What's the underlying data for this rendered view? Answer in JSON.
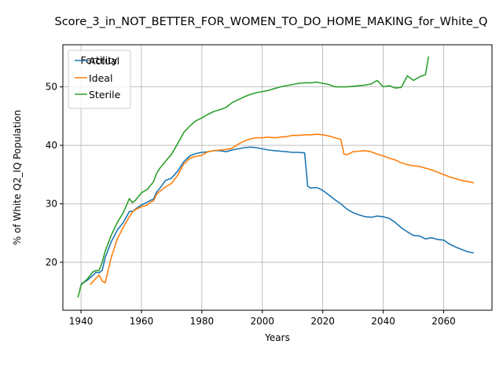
{
  "chart_data": {
    "type": "line",
    "title": "Score_3_in_NOT_BETTER_FOR_WOMEN_TO_DO_HOME_MAKING_for_White_Q",
    "xlabel": "Years",
    "ylabel": "% of White Q2_IQ Population",
    "xlim": [
      1934,
      2076
    ],
    "ylim": [
      11.8,
      57.2
    ],
    "xticks": [
      1940,
      1960,
      1980,
      2000,
      2020,
      2040,
      2060
    ],
    "yticks": [
      20,
      30,
      40,
      50
    ],
    "xtick_labels": [
      "1940",
      "1960",
      "1980",
      "2000",
      "2020",
      "2040",
      "2060"
    ],
    "ytick_labels": [
      "20",
      "30",
      "40",
      "50"
    ],
    "grid": true,
    "legend": {
      "title": "Fertility",
      "placement": "upper-left"
    },
    "series": [
      {
        "name": "Actual",
        "color": "#1f77b4",
        "x": [
          1940,
          1942,
          1944,
          1945,
          1946,
          1947,
          1948,
          1950,
          1952,
          1954,
          1956,
          1957,
          1958,
          1960,
          1962,
          1963,
          1964,
          1965,
          1966,
          1968,
          1970,
          1972,
          1974,
          1976,
          1978,
          1980,
          1982,
          1984,
          1986,
          1988,
          1990,
          1992,
          1994,
          1996,
          1998,
          2000,
          2002,
          2004,
          2006,
          2008,
          2010,
          2012,
          2014,
          2015,
          2016,
          2018,
          2020,
          2022,
          2024,
          2026,
          2028,
          2030,
          2032,
          2034,
          2036,
          2038,
          2040,
          2042,
          2044,
          2046,
          2048,
          2050,
          2052,
          2054,
          2056,
          2058,
          2060,
          2062,
          2064,
          2066,
          2068,
          2070
        ],
        "values": [
          16.3,
          16.9,
          17.8,
          18.3,
          18.2,
          18.6,
          20.8,
          23.5,
          25.5,
          26.8,
          28.7,
          28.7,
          29.1,
          29.8,
          30.3,
          30.6,
          30.8,
          32.0,
          32.6,
          34.0,
          34.4,
          35.6,
          37.2,
          38.2,
          38.6,
          38.8,
          38.9,
          39.1,
          39.1,
          38.9,
          39.2,
          39.4,
          39.6,
          39.7,
          39.6,
          39.4,
          39.2,
          39.1,
          39.0,
          38.9,
          38.8,
          38.8,
          38.7,
          33.0,
          32.7,
          32.8,
          32.3,
          31.5,
          30.7,
          30.0,
          29.1,
          28.5,
          28.1,
          27.8,
          27.7,
          27.9,
          27.8,
          27.5,
          26.8,
          25.9,
          25.2,
          24.6,
          24.5,
          24.0,
          24.2,
          23.9,
          23.8,
          23.1,
          22.6,
          22.2,
          21.8,
          21.6
        ]
      },
      {
        "name": "Ideal",
        "color": "#ff7f0e",
        "x": [
          1943,
          1944,
          1945,
          1946,
          1947,
          1948,
          1950,
          1952,
          1954,
          1956,
          1957,
          1958,
          1960,
          1962,
          1963,
          1964,
          1965,
          1966,
          1968,
          1970,
          1972,
          1974,
          1976,
          1978,
          1980,
          1982,
          1984,
          1986,
          1988,
          1990,
          1992,
          1994,
          1996,
          1998,
          2000,
          2002,
          2004,
          2006,
          2008,
          2010,
          2012,
          2014,
          2016,
          2018,
          2020,
          2022,
          2024,
          2026,
          2027,
          2028,
          2030,
          2032,
          2034,
          2036,
          2038,
          2040,
          2042,
          2044,
          2046,
          2048,
          2050,
          2052,
          2054,
          2056,
          2058,
          2060,
          2062,
          2064,
          2066,
          2068,
          2070
        ],
        "values": [
          16.2,
          16.7,
          17.3,
          17.8,
          16.8,
          16.5,
          20.8,
          24.0,
          26.0,
          27.8,
          28.6,
          29.0,
          29.5,
          29.8,
          30.3,
          30.5,
          31.6,
          32.1,
          32.9,
          33.5,
          34.9,
          36.8,
          37.8,
          38.1,
          38.3,
          38.9,
          39.1,
          39.2,
          39.3,
          39.5,
          40.2,
          40.7,
          41.1,
          41.3,
          41.3,
          41.4,
          41.3,
          41.4,
          41.5,
          41.7,
          41.7,
          41.8,
          41.8,
          41.9,
          41.8,
          41.6,
          41.3,
          41.0,
          38.5,
          38.4,
          38.9,
          39.0,
          39.1,
          38.9,
          38.5,
          38.2,
          37.8,
          37.5,
          37.0,
          36.7,
          36.5,
          36.4,
          36.1,
          35.8,
          35.4,
          35.0,
          34.6,
          34.3,
          34.0,
          33.8,
          33.6
        ]
      },
      {
        "name": "Sterile",
        "color": "#2ca02c",
        "x": [
          1939,
          1940,
          1942,
          1944,
          1945,
          1946,
          1947,
          1948,
          1950,
          1952,
          1954,
          1956,
          1957,
          1958,
          1960,
          1962,
          1964,
          1965,
          1966,
          1968,
          1970,
          1972,
          1974,
          1976,
          1978,
          1980,
          1982,
          1984,
          1986,
          1988,
          1990,
          1992,
          1994,
          1996,
          1998,
          2000,
          2002,
          2004,
          2006,
          2008,
          2010,
          2012,
          2014,
          2016,
          2018,
          2020,
          2022,
          2024,
          2026,
          2028,
          2030,
          2032,
          2034,
          2036,
          2038,
          2040,
          2042,
          2044,
          2046,
          2048,
          2050,
          2052,
          2054,
          2055
        ],
        "values": [
          14.0,
          16.1,
          17.1,
          18.4,
          18.6,
          18.6,
          20.0,
          21.9,
          24.6,
          26.8,
          28.5,
          30.9,
          30.2,
          30.6,
          31.9,
          32.5,
          33.8,
          35.2,
          36.0,
          37.3,
          38.5,
          40.3,
          42.2,
          43.3,
          44.2,
          44.7,
          45.3,
          45.8,
          46.1,
          46.5,
          47.3,
          47.8,
          48.3,
          48.7,
          49.0,
          49.2,
          49.4,
          49.7,
          50.0,
          50.2,
          50.4,
          50.6,
          50.7,
          50.7,
          50.8,
          50.6,
          50.4,
          50.0,
          50.0,
          50.0,
          50.1,
          50.2,
          50.3,
          50.5,
          51.1,
          50.0,
          50.2,
          49.8,
          49.9,
          51.9,
          51.1,
          51.7,
          52.1,
          55.2
        ]
      }
    ]
  }
}
